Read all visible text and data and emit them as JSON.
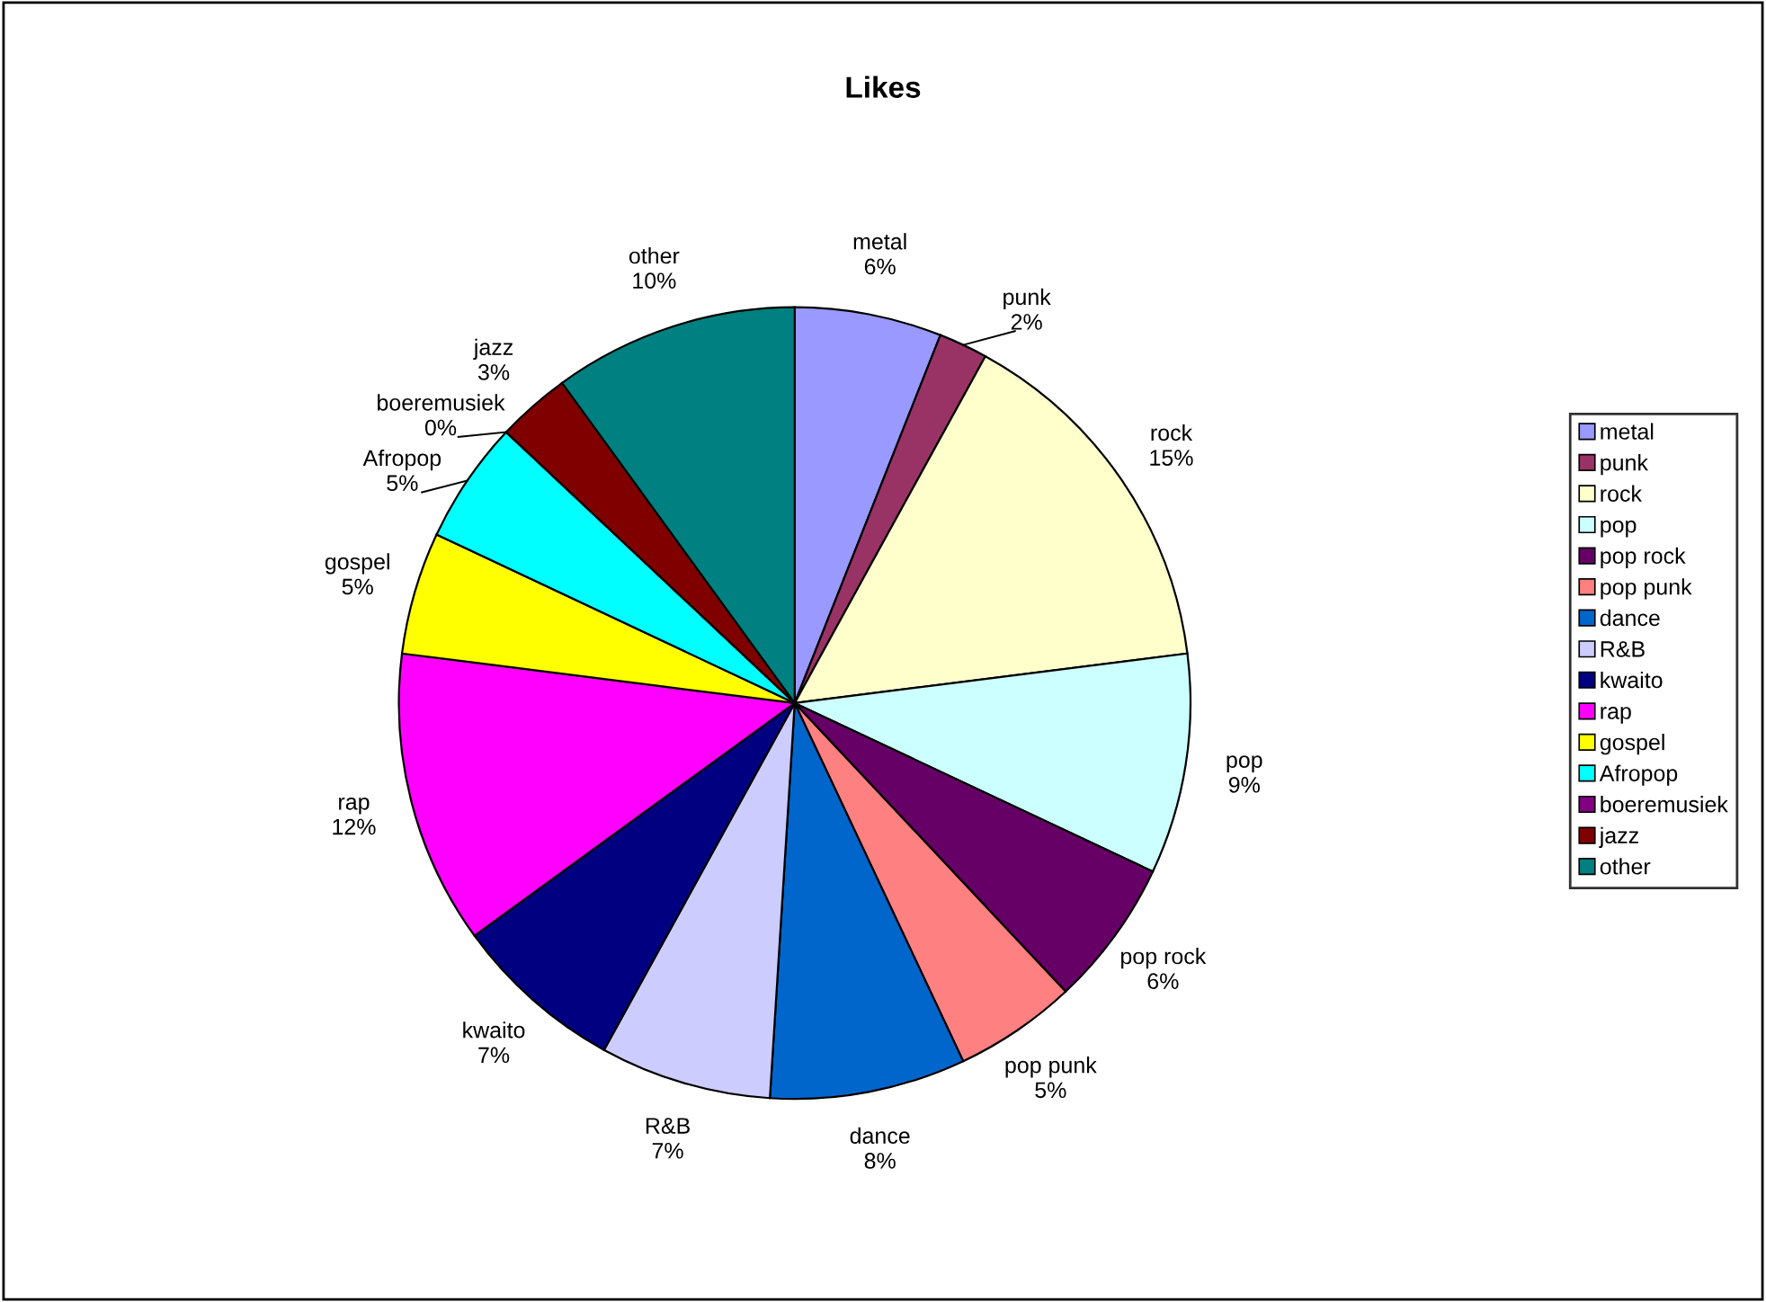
{
  "chart_data": {
    "type": "pie",
    "title": "Likes",
    "categories": [
      "metal",
      "punk",
      "rock",
      "pop",
      "pop rock",
      "pop punk",
      "dance",
      "R&B",
      "kwaito",
      "rap",
      "gospel",
      "Afropop",
      "boeremusiek",
      "jazz",
      "other"
    ],
    "values": [
      6,
      2,
      15,
      9,
      6,
      5,
      8,
      7,
      7,
      12,
      5,
      5,
      0,
      3,
      10
    ],
    "colors": [
      "#9999ff",
      "#993366",
      "#ffffcc",
      "#ccffff",
      "#660066",
      "#ff8080",
      "#0066cc",
      "#ccccff",
      "#000080",
      "#ff00ff",
      "#ffff00",
      "#00ffff",
      "#800080",
      "#800000",
      "#008080"
    ],
    "value_labels": [
      "6%",
      "2%",
      "15%",
      "9%",
      "6%",
      "5%",
      "8%",
      "7%",
      "7%",
      "12%",
      "5%",
      "5%",
      "0%",
      "3%",
      "10%"
    ],
    "legend": "right"
  }
}
